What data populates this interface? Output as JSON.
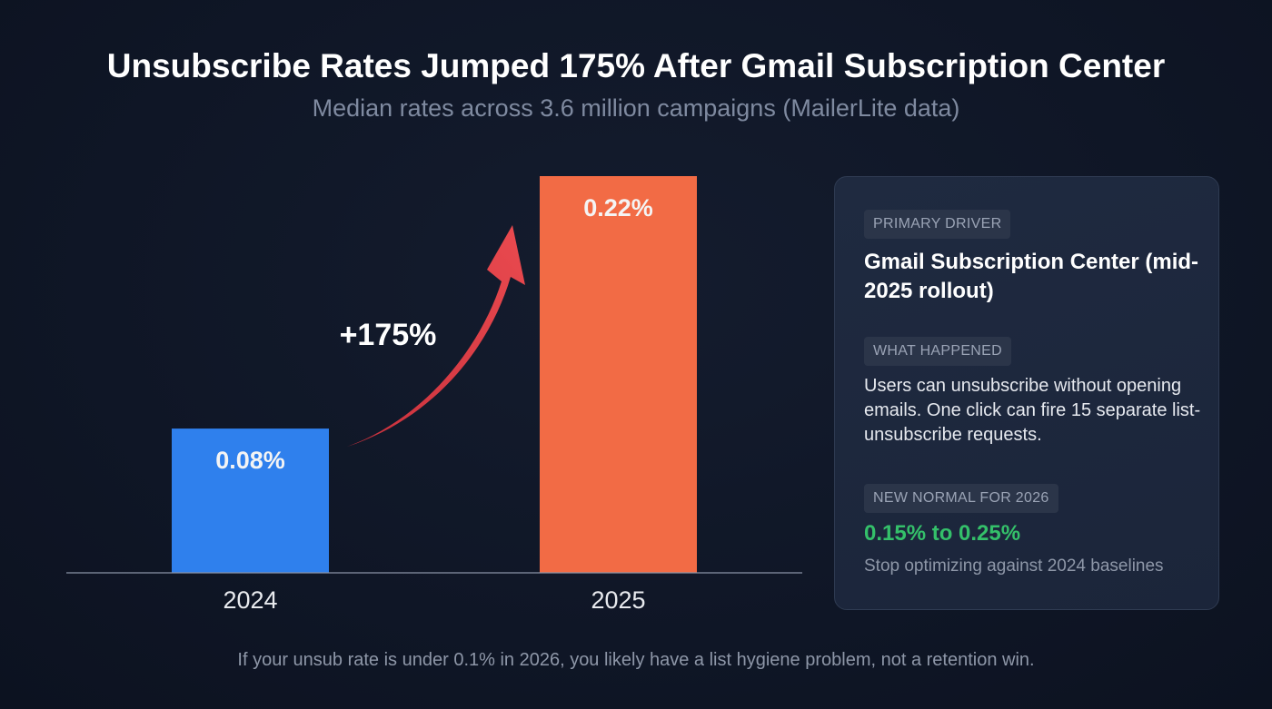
{
  "header": {
    "title": "Unsubscribe Rates Jumped 175% After Gmail Subscription Center",
    "subtitle": "Median rates across 3.6 million campaigns (MailerLite data)"
  },
  "chart_data": {
    "type": "bar",
    "title": "Unsubscribe Rates Jumped 175% After Gmail Subscription Center",
    "subtitle": "Median rates across 3.6 million campaigns (MailerLite data)",
    "categories": [
      "2024",
      "2025"
    ],
    "values": [
      0.08,
      0.22
    ],
    "data_labels": [
      "0.08%",
      "0.22%"
    ],
    "colors": [
      "#2f80ed",
      "#f26b45"
    ],
    "annotation": {
      "text": "+175%",
      "arrow_color": "#e5434b",
      "from": "2024",
      "to": "2025"
    },
    "xlabel": "",
    "ylabel": "",
    "ylim": [
      0,
      0.22
    ],
    "grid": false,
    "legend": "none"
  },
  "card": {
    "primary_driver_label": "PRIMARY DRIVER",
    "primary_driver": "Gmail Subscription Center (mid-2025 rollout)",
    "what_happened_label": "WHAT HAPPENED",
    "what_happened": "Users can unsubscribe without opening emails. One click can fire 15 separate list-unsubscribe requests.",
    "new_normal_label": "NEW NORMAL FOR 2026",
    "new_normal_range": "0.15% to 0.25%",
    "new_normal_note": "Stop optimizing against 2024 baselines",
    "accent_color": "#34c06a"
  },
  "footer": "If your unsub rate is under 0.1% in 2026, you likely have a list hygiene problem, not a retention win."
}
